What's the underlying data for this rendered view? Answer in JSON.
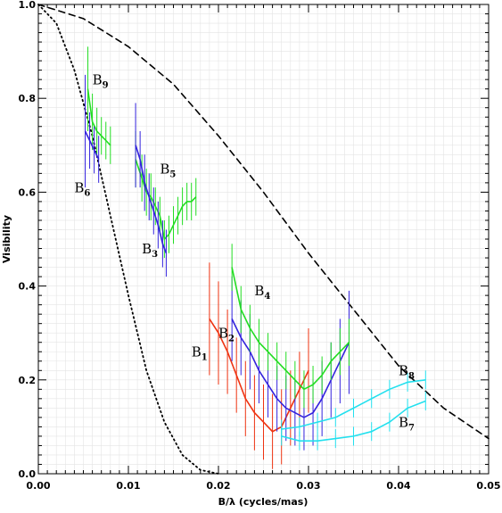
{
  "chart_data": {
    "type": "line",
    "xlabel": "B/λ (cycles/mas)",
    "ylabel": "Visibility",
    "xlim": [
      0.0,
      0.05
    ],
    "ylim": [
      0.0,
      1.0
    ],
    "x_ticks": [
      "0.00",
      "0.01",
      "0.02",
      "0.03",
      "0.04",
      "0.05"
    ],
    "y_ticks": [
      "0.0",
      "0.2",
      "0.4",
      "0.6",
      "0.8",
      "1.0"
    ],
    "grid": true,
    "legend": "none",
    "models": [
      {
        "style": "dashed",
        "color": "#000000",
        "x": [
          0.0,
          0.005,
          0.01,
          0.015,
          0.02,
          0.025,
          0.03,
          0.035,
          0.04,
          0.045,
          0.05
        ],
        "y": [
          1.0,
          0.97,
          0.91,
          0.83,
          0.72,
          0.6,
          0.47,
          0.35,
          0.23,
          0.14,
          0.075
        ]
      },
      {
        "style": "dotted",
        "color": "#000000",
        "x": [
          0.0,
          0.002,
          0.004,
          0.006,
          0.008,
          0.01,
          0.012,
          0.014,
          0.016,
          0.018,
          0.02
        ],
        "y": [
          1.0,
          0.96,
          0.86,
          0.72,
          0.55,
          0.38,
          0.22,
          0.11,
          0.04,
          0.008,
          0.0
        ]
      }
    ],
    "series": [
      {
        "color": "#22dd22",
        "x": [
          0.0055,
          0.006,
          0.0065,
          0.007,
          0.0075,
          0.008
        ],
        "y": [
          0.82,
          0.75,
          0.73,
          0.72,
          0.71,
          0.7
        ],
        "err": [
          0.09,
          0.06,
          0.05,
          0.04,
          0.04,
          0.04
        ]
      },
      {
        "color": "#3322dd",
        "x": [
          0.0052,
          0.0057,
          0.0062,
          0.0067
        ],
        "y": [
          0.73,
          0.71,
          0.69,
          0.67
        ],
        "err": [
          0.12,
          0.06,
          0.05,
          0.05
        ]
      },
      {
        "color": "#22dd22",
        "x": [
          0.0108,
          0.0115,
          0.012,
          0.0125,
          0.013,
          0.0135,
          0.014,
          0.0145,
          0.015,
          0.0155,
          0.016,
          0.0165,
          0.017,
          0.0175
        ],
        "y": [
          0.67,
          0.63,
          0.6,
          0.59,
          0.57,
          0.55,
          0.5,
          0.51,
          0.53,
          0.55,
          0.57,
          0.58,
          0.58,
          0.59
        ],
        "err": [
          0.06,
          0.05,
          0.05,
          0.05,
          0.04,
          0.04,
          0.04,
          0.04,
          0.04,
          0.04,
          0.04,
          0.04,
          0.04,
          0.04
        ]
      },
      {
        "color": "#3322dd",
        "x": [
          0.0108,
          0.0113,
          0.0118,
          0.0123,
          0.0128,
          0.0133,
          0.0138,
          0.0142
        ],
        "y": [
          0.7,
          0.67,
          0.62,
          0.59,
          0.56,
          0.53,
          0.49,
          0.47
        ],
        "err": [
          0.09,
          0.06,
          0.06,
          0.05,
          0.05,
          0.05,
          0.05,
          0.05
        ]
      },
      {
        "color": "#ee3311",
        "x": [
          0.019,
          0.02,
          0.021,
          0.022,
          0.023,
          0.024,
          0.025,
          0.026,
          0.027,
          0.028,
          0.029,
          0.03
        ],
        "y": [
          0.33,
          0.3,
          0.26,
          0.21,
          0.16,
          0.13,
          0.11,
          0.09,
          0.1,
          0.14,
          0.18,
          0.22
        ],
        "err": [
          0.12,
          0.11,
          0.09,
          0.08,
          0.08,
          0.08,
          0.08,
          0.08,
          0.08,
          0.08,
          0.08,
          0.09
        ]
      },
      {
        "color": "#3322dd",
        "x": [
          0.0215,
          0.0225,
          0.0235,
          0.0245,
          0.0255,
          0.0265,
          0.0275,
          0.0285,
          0.0295,
          0.0305,
          0.0315,
          0.0325,
          0.0335,
          0.0345
        ],
        "y": [
          0.33,
          0.29,
          0.26,
          0.22,
          0.19,
          0.16,
          0.14,
          0.13,
          0.12,
          0.13,
          0.16,
          0.2,
          0.24,
          0.28
        ],
        "err": [
          0.09,
          0.08,
          0.08,
          0.07,
          0.07,
          0.07,
          0.07,
          0.07,
          0.07,
          0.07,
          0.08,
          0.08,
          0.09,
          0.11
        ]
      },
      {
        "color": "#22dd22",
        "x": [
          0.0215,
          0.0225,
          0.0235,
          0.0245,
          0.0255,
          0.0265,
          0.0275,
          0.0285,
          0.0295,
          0.0305,
          0.0315,
          0.0325,
          0.0335,
          0.0345
        ],
        "y": [
          0.44,
          0.35,
          0.31,
          0.28,
          0.26,
          0.24,
          0.22,
          0.2,
          0.18,
          0.19,
          0.21,
          0.24,
          0.26,
          0.28
        ],
        "err": [
          0.05,
          0.05,
          0.05,
          0.05,
          0.04,
          0.04,
          0.04,
          0.04,
          0.04,
          0.04,
          0.04,
          0.04,
          0.05,
          0.05
        ]
      },
      {
        "color": "#22e0ee",
        "x": [
          0.027,
          0.029,
          0.031,
          0.033,
          0.035,
          0.037,
          0.039,
          0.041,
          0.043
        ],
        "y": [
          0.08,
          0.07,
          0.07,
          0.075,
          0.08,
          0.09,
          0.11,
          0.14,
          0.155
        ],
        "err": [
          0.02,
          0.02,
          0.02,
          0.02,
          0.02,
          0.02,
          0.02,
          0.02,
          0.02
        ]
      },
      {
        "color": "#22e0ee",
        "x": [
          0.027,
          0.029,
          0.031,
          0.033,
          0.035,
          0.037,
          0.039,
          0.041,
          0.043
        ],
        "y": [
          0.095,
          0.1,
          0.11,
          0.12,
          0.14,
          0.16,
          0.18,
          0.195,
          0.2
        ],
        "err": [
          0.02,
          0.02,
          0.02,
          0.02,
          0.02,
          0.02,
          0.02,
          0.02,
          0.02
        ]
      }
    ],
    "annotations": [
      {
        "text": "B",
        "sub": "9",
        "x": 0.006,
        "y": 0.83
      },
      {
        "text": "B",
        "sub": "6",
        "x": 0.004,
        "y": 0.6
      },
      {
        "text": "B",
        "sub": "5",
        "x": 0.0135,
        "y": 0.64
      },
      {
        "text": "B",
        "sub": "3",
        "x": 0.0115,
        "y": 0.47
      },
      {
        "text": "B",
        "sub": "4",
        "x": 0.024,
        "y": 0.38
      },
      {
        "text": "B",
        "sub": "2",
        "x": 0.02,
        "y": 0.29
      },
      {
        "text": "B",
        "sub": "1",
        "x": 0.017,
        "y": 0.25
      },
      {
        "text": "B",
        "sub": "8",
        "x": 0.04,
        "y": 0.21
      },
      {
        "text": "B",
        "sub": "7",
        "x": 0.04,
        "y": 0.1
      }
    ]
  }
}
